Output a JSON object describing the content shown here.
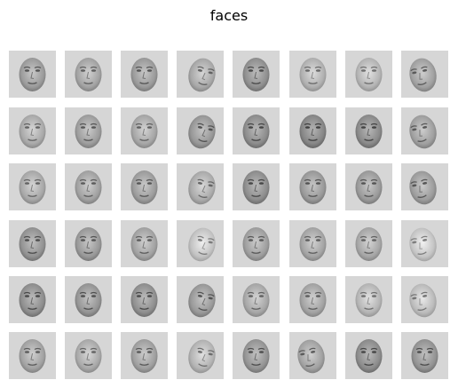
{
  "figure": {
    "title": "faces",
    "rows": 6,
    "cols": 8,
    "background_color": "#d6d6d6"
  },
  "faces": [
    {
      "pose": "frontal",
      "tone": "#9b9b9b"
    },
    {
      "pose": "frontal",
      "tone": "#a3a3a3"
    },
    {
      "pose": "frontal",
      "tone": "#9a9a9a"
    },
    {
      "pose": "left",
      "tone": "#a8a8a8"
    },
    {
      "pose": "frontal",
      "tone": "#8f8f8f"
    },
    {
      "pose": "frontal",
      "tone": "#b0b0b0"
    },
    {
      "pose": "frontal",
      "tone": "#b4b4b4"
    },
    {
      "pose": "right",
      "tone": "#a0a0a0"
    },
    {
      "pose": "frontal",
      "tone": "#a9a9a9"
    },
    {
      "pose": "frontal",
      "tone": "#9d9d9d"
    },
    {
      "pose": "frontal",
      "tone": "#a6a6a6"
    },
    {
      "pose": "left",
      "tone": "#979797"
    },
    {
      "pose": "frontal",
      "tone": "#8c8c8c"
    },
    {
      "pose": "frontal",
      "tone": "#868686"
    },
    {
      "pose": "frontal",
      "tone": "#8a8a8a"
    },
    {
      "pose": "right",
      "tone": "#9f9f9f"
    },
    {
      "pose": "frontal",
      "tone": "#a8a8a8"
    },
    {
      "pose": "frontal",
      "tone": "#a1a1a1"
    },
    {
      "pose": "frontal",
      "tone": "#9c9c9c"
    },
    {
      "pose": "left",
      "tone": "#ababab"
    },
    {
      "pose": "frontal",
      "tone": "#8d8d8d"
    },
    {
      "pose": "frontal",
      "tone": "#999999"
    },
    {
      "pose": "frontal",
      "tone": "#9a9a9a"
    },
    {
      "pose": "right",
      "tone": "#9c9c9c"
    },
    {
      "pose": "frontal",
      "tone": "#929292"
    },
    {
      "pose": "frontal",
      "tone": "#999999"
    },
    {
      "pose": "frontal",
      "tone": "#a2a2a2"
    },
    {
      "pose": "left",
      "tone": "#c2c2c2"
    },
    {
      "pose": "frontal",
      "tone": "#9e9e9e"
    },
    {
      "pose": "frontal",
      "tone": "#a4a4a4"
    },
    {
      "pose": "frontal",
      "tone": "#a6a6a6"
    },
    {
      "pose": "right",
      "tone": "#c4c4c4"
    },
    {
      "pose": "frontal",
      "tone": "#8e8e8e"
    },
    {
      "pose": "frontal",
      "tone": "#959595"
    },
    {
      "pose": "frontal",
      "tone": "#8f8f8f"
    },
    {
      "pose": "left",
      "tone": "#999999"
    },
    {
      "pose": "frontal",
      "tone": "#a7a7a7"
    },
    {
      "pose": "frontal",
      "tone": "#a3a3a3"
    },
    {
      "pose": "frontal",
      "tone": "#b5b5b5"
    },
    {
      "pose": "right",
      "tone": "#bbbbbb"
    },
    {
      "pose": "frontal",
      "tone": "#a2a2a2"
    },
    {
      "pose": "frontal",
      "tone": "#a9a9a9"
    },
    {
      "pose": "frontal",
      "tone": "#9f9f9f"
    },
    {
      "pose": "left",
      "tone": "#b3b3b3"
    },
    {
      "pose": "frontal",
      "tone": "#949494"
    },
    {
      "pose": "right",
      "tone": "#a2a2a2"
    },
    {
      "pose": "frontal",
      "tone": "#8c8c8c"
    },
    {
      "pose": "frontal",
      "tone": "#939393"
    }
  ]
}
